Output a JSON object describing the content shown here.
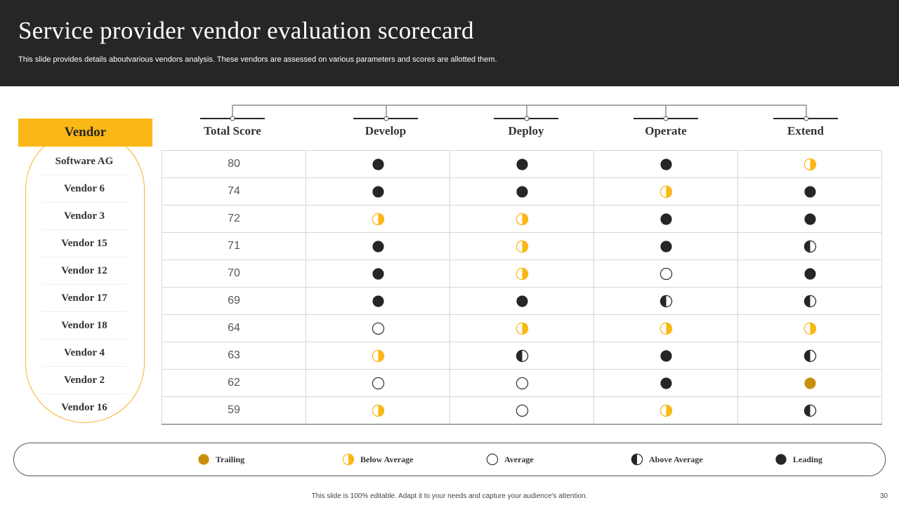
{
  "header": {
    "title": "Service provider vendor evaluation scorecard",
    "subtitle": "This slide provides details aboutvarious vendors analysis. These vendors are assessed on various parameters and scores are allotted them."
  },
  "vendor_header": "Vendor",
  "columns": [
    "Total Score",
    "Develop",
    "Deploy",
    "Operate",
    "Extend"
  ],
  "rows": [
    {
      "vendor": "Software AG",
      "score": "80",
      "develop": "leading",
      "deploy": "leading",
      "operate": "leading",
      "extend": "below-average"
    },
    {
      "vendor": "Vendor 6",
      "score": "74",
      "develop": "leading",
      "deploy": "leading",
      "operate": "below-average",
      "extend": "leading"
    },
    {
      "vendor": "Vendor 3",
      "score": "72",
      "develop": "below-average",
      "deploy": "below-average",
      "operate": "leading",
      "extend": "leading"
    },
    {
      "vendor": "Vendor 15",
      "score": "71",
      "develop": "leading",
      "deploy": "below-average",
      "operate": "leading",
      "extend": "above-average"
    },
    {
      "vendor": "Vendor 12",
      "score": "70",
      "develop": "leading",
      "deploy": "below-average",
      "operate": "average",
      "extend": "leading"
    },
    {
      "vendor": "Vendor 17",
      "score": "69",
      "develop": "leading",
      "deploy": "leading",
      "operate": "above-average",
      "extend": "above-average"
    },
    {
      "vendor": "Vendor 18",
      "score": "64",
      "develop": "average",
      "deploy": "below-average",
      "operate": "below-average",
      "extend": "below-average"
    },
    {
      "vendor": "Vendor 4",
      "score": "63",
      "develop": "below-average",
      "deploy": "above-average",
      "operate": "leading",
      "extend": "above-average"
    },
    {
      "vendor": "Vendor 2",
      "score": "62",
      "develop": "average",
      "deploy": "average",
      "operate": "leading",
      "extend": "trailing"
    },
    {
      "vendor": "Vendor 16",
      "score": "59",
      "develop": "below-average",
      "deploy": "average",
      "operate": "below-average",
      "extend": "above-average"
    }
  ],
  "legend": [
    {
      "key": "trailing",
      "label": "Trailing"
    },
    {
      "key": "below-average",
      "label": "Below Average"
    },
    {
      "key": "average",
      "label": "Average"
    },
    {
      "key": "above-average",
      "label": "Above  Average"
    },
    {
      "key": "leading",
      "label": "Leading"
    }
  ],
  "colors": {
    "header_bg": "#262626",
    "accent": "#fbb715",
    "trailing": "#c8900f",
    "dark": "#262626"
  },
  "footer": {
    "note": "This slide is 100% editable.  Adapt it to your needs and capture your audience's attention.",
    "page_number": "30"
  }
}
